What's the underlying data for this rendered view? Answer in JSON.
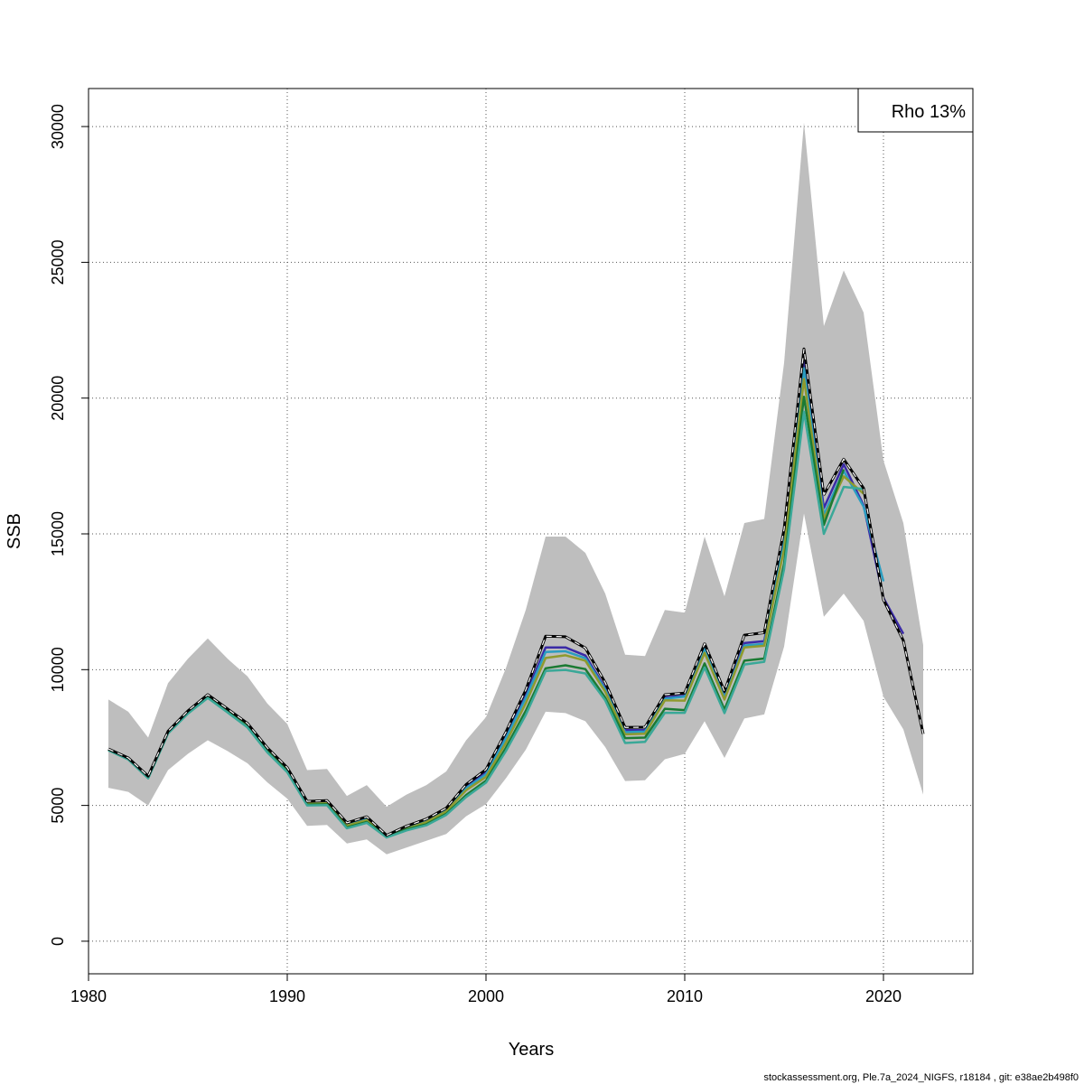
{
  "chart_data": {
    "type": "line",
    "title": "",
    "xlabel": "Years",
    "ylabel": "SSB",
    "xlim": [
      1980,
      2024.5
    ],
    "ylim": [
      -1200,
      31400
    ],
    "x_ticks": [
      1980,
      1990,
      2000,
      2010,
      2020
    ],
    "y_ticks": [
      0,
      5000,
      10000,
      15000,
      20000,
      25000,
      30000
    ],
    "grid": true,
    "legend": {
      "position": "top-right",
      "text": "Rho 13%"
    },
    "footer": "stockassessment.org, Ple.7a_2024_NIGFS, r18184 , git: e38ae2b498f0",
    "colors": {
      "band": "#bebebe",
      "grid": "#555555",
      "main": "#000000",
      "peel_1": "#3a2aa6",
      "peel_2": "#2a9dc0",
      "peel_3": "#8f9a2e",
      "peel_4": "#1b7a33",
      "peel_5": "#3aa898"
    },
    "confidence_band": {
      "x": [
        1981,
        1982,
        1983,
        1984,
        1985,
        1986,
        1987,
        1988,
        1989,
        1990,
        1991,
        1992,
        1993,
        1994,
        1995,
        1996,
        1997,
        1998,
        1999,
        2000,
        2001,
        2002,
        2003,
        2004,
        2005,
        2006,
        2007,
        2008,
        2009,
        2010,
        2011,
        2012,
        2013,
        2014,
        2015,
        2016,
        2017,
        2018,
        2019,
        2020,
        2021,
        2022
      ],
      "lower": [
        5650,
        5500,
        5000,
        6300,
        6900,
        7400,
        7000,
        6550,
        5850,
        5250,
        4250,
        4280,
        3600,
        3750,
        3200,
        3450,
        3700,
        3950,
        4600,
        5050,
        6000,
        7050,
        8450,
        8400,
        8100,
        7150,
        5900,
        5930,
        6700,
        6900,
        8100,
        6750,
        8200,
        8350,
        10850,
        15750,
        11950,
        12800,
        11800,
        9000,
        7800,
        5400
      ],
      "upper": [
        8900,
        8450,
        7500,
        9500,
        10400,
        11150,
        10400,
        9750,
        8750,
        8000,
        6300,
        6340,
        5350,
        5750,
        4950,
        5400,
        5750,
        6250,
        7400,
        8250,
        10050,
        12200,
        14900,
        14900,
        14300,
        12800,
        10550,
        10500,
        12200,
        12100,
        14900,
        12700,
        15400,
        15550,
        21300,
        30150,
        22650,
        24700,
        23150,
        17700,
        15400,
        10900
      ]
    },
    "series": [
      {
        "name": "main",
        "style": "dashed",
        "x": [
          1981,
          1982,
          1983,
          1984,
          1985,
          1986,
          1987,
          1988,
          1989,
          1990,
          1991,
          1992,
          1993,
          1994,
          1995,
          1996,
          1997,
          1998,
          1999,
          2000,
          2001,
          2002,
          2003,
          2004,
          2005,
          2006,
          2007,
          2008,
          2009,
          2010,
          2011,
          2012,
          2013,
          2014,
          2015,
          2016,
          2017,
          2018,
          2019,
          2020,
          2021,
          2022
        ],
        "values": [
          7080,
          6750,
          6080,
          7730,
          8480,
          9080,
          8550,
          8020,
          7120,
          6390,
          5150,
          5180,
          4360,
          4580,
          3900,
          4240,
          4500,
          4900,
          5770,
          6320,
          7700,
          9250,
          11230,
          11210,
          10800,
          9520,
          7870,
          7880,
          9080,
          9140,
          10960,
          9200,
          11270,
          11360,
          15170,
          21810,
          16440,
          17750,
          16680,
          12580,
          11070,
          7630
        ]
      },
      {
        "name": "peel_1",
        "x": [
          1981,
          1982,
          1983,
          1984,
          1985,
          1986,
          1987,
          1988,
          1989,
          1990,
          1991,
          1992,
          1993,
          1994,
          1995,
          1996,
          1997,
          1998,
          1999,
          2000,
          2001,
          2002,
          2003,
          2004,
          2005,
          2006,
          2007,
          2008,
          2009,
          2010,
          2011,
          2012,
          2013,
          2014,
          2015,
          2016,
          2017,
          2018,
          2019,
          2020,
          2021
        ],
        "values": [
          7070,
          6740,
          6060,
          7720,
          8470,
          9060,
          8530,
          7990,
          7090,
          6360,
          5120,
          5140,
          4320,
          4530,
          3880,
          4200,
          4450,
          4850,
          5680,
          6210,
          7560,
          9070,
          10820,
          10820,
          10520,
          9320,
          7770,
          7770,
          8980,
          9040,
          10830,
          9060,
          10980,
          11050,
          14890,
          21500,
          15950,
          17560,
          16050,
          12640,
          11320
        ]
      },
      {
        "name": "peel_2",
        "x": [
          1981,
          1982,
          1983,
          1984,
          1985,
          1986,
          1987,
          1988,
          1989,
          1990,
          1991,
          1992,
          1993,
          1994,
          1995,
          1996,
          1997,
          1998,
          1999,
          2000,
          2001,
          2002,
          2003,
          2004,
          2005,
          2006,
          2007,
          2008,
          2009,
          2010,
          2011,
          2012,
          2013,
          2014,
          2015,
          2016,
          2017,
          2018,
          2019,
          2020
        ],
        "values": [
          7060,
          6730,
          6050,
          7710,
          8460,
          9040,
          8510,
          7970,
          7070,
          6340,
          5100,
          5120,
          4300,
          4510,
          3860,
          4180,
          4420,
          4810,
          5640,
          6150,
          7480,
          8960,
          10650,
          10680,
          10420,
          9270,
          7700,
          7720,
          8930,
          9010,
          10770,
          8980,
          10890,
          10950,
          14700,
          21100,
          15700,
          17320,
          16000,
          13250
        ]
      },
      {
        "name": "peel_3",
        "x": [
          1981,
          1982,
          1983,
          1984,
          1985,
          1986,
          1987,
          1988,
          1989,
          1990,
          1991,
          1992,
          1993,
          1994,
          1995,
          1996,
          1997,
          1998,
          1999,
          2000,
          2001,
          2002,
          2003,
          2004,
          2005,
          2006,
          2007,
          2008,
          2009,
          2010,
          2011,
          2012,
          2013,
          2014,
          2015,
          2016,
          2017,
          2018,
          2019
        ],
        "values": [
          7050,
          6720,
          6030,
          7690,
          8430,
          9010,
          8480,
          7940,
          7030,
          6300,
          5060,
          5080,
          4260,
          4460,
          3840,
          4140,
          4390,
          4780,
          5560,
          6050,
          7310,
          8760,
          10430,
          10530,
          10330,
          9190,
          7620,
          7640,
          8870,
          8860,
          10620,
          8900,
          10820,
          10880,
          14450,
          20700,
          15550,
          17120,
          16480
        ]
      },
      {
        "name": "peel_4",
        "x": [
          1981,
          1982,
          1983,
          1984,
          1985,
          1986,
          1987,
          1988,
          1989,
          1990,
          1991,
          1992,
          1993,
          1994,
          1995,
          1996,
          1997,
          1998,
          1999,
          2000,
          2001,
          2002,
          2003,
          2004,
          2005,
          2006,
          2007,
          2008,
          2009,
          2010,
          2011,
          2012,
          2013,
          2014,
          2015,
          2016,
          2017,
          2018
        ],
        "values": [
          7040,
          6700,
          6010,
          7660,
          8400,
          8980,
          8440,
          7900,
          6990,
          6260,
          5030,
          5040,
          4190,
          4390,
          3860,
          4120,
          4310,
          4690,
          5380,
          5910,
          7120,
          8480,
          10050,
          10160,
          10020,
          8970,
          7480,
          7500,
          8560,
          8510,
          10230,
          8530,
          10330,
          10410,
          13900,
          20050,
          15330,
          17380
        ]
      },
      {
        "name": "peel_5",
        "x": [
          1981,
          1982,
          1983,
          1984,
          1985,
          1986,
          1987,
          1988,
          1989,
          1990,
          1991,
          1992,
          1993,
          1994,
          1995,
          1996,
          1997,
          1998,
          1999,
          2000,
          2001,
          2002,
          2003,
          2004,
          2005,
          2006,
          2007,
          2008,
          2009,
          2010,
          2011,
          2012,
          2013,
          2014,
          2015,
          2016,
          2017,
          2018,
          2019
        ],
        "values": [
          7030,
          6690,
          6000,
          7650,
          8380,
          8960,
          8420,
          7870,
          6950,
          6220,
          5000,
          5010,
          4160,
          4360,
          3820,
          4080,
          4270,
          4650,
          5310,
          5840,
          7000,
          8330,
          9950,
          9990,
          9860,
          8870,
          7300,
          7340,
          8410,
          8410,
          10080,
          8400,
          10190,
          10290,
          13700,
          19500,
          15000,
          16730,
          16650
        ]
      }
    ]
  }
}
